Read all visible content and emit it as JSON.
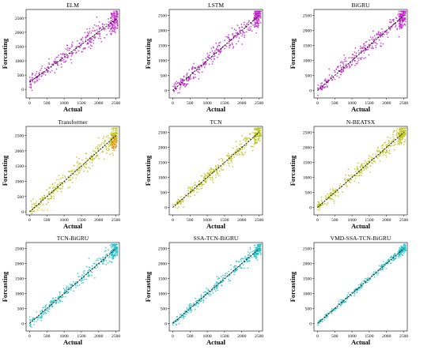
{
  "colors": {
    "magenta": "#c21ec9",
    "olive": "#b8c20e",
    "cyan": "#1ec3c8",
    "trend": "#000000",
    "orange_highlight": "#f08a1a"
  },
  "chart_data": [
    {
      "type": "scatter",
      "title": "ELM",
      "xlabel": "Actual",
      "ylabel": "Forcasting",
      "xlim": [
        -100,
        2600
      ],
      "ylim": [
        -300,
        2800
      ],
      "xticks": [
        0,
        500,
        1000,
        1500,
        2000,
        2500
      ],
      "yticks": [
        0,
        500,
        1000,
        1500,
        2000,
        2500
      ],
      "xtick_labels": [
        "0",
        "500",
        "1000",
        "1500",
        "2000",
        "2500"
      ],
      "ytick_labels": [
        "0",
        "500",
        "1000",
        "1500",
        "2000",
        "2500"
      ],
      "color": "#c21ec9",
      "spread": 210,
      "trend_line": [
        [
          0,
          250
        ],
        [
          2500,
          2450
        ]
      ],
      "grid": false,
      "legend": "none"
    },
    {
      "type": "scatter",
      "title": "LSTM",
      "xlabel": "Actual",
      "ylabel": "Forcasting",
      "xlim": [
        -100,
        2600
      ],
      "ylim": [
        -250,
        2700
      ],
      "xticks": [
        0,
        500,
        1000,
        1500,
        2000,
        2500
      ],
      "yticks": [
        0,
        500,
        1000,
        1500,
        2000,
        2500
      ],
      "xtick_labels": [
        "0",
        "500",
        "1000",
        "1500",
        "2000",
        "2500"
      ],
      "ytick_labels": [
        "0",
        "500",
        "1000",
        "1500",
        "2000",
        "2500"
      ],
      "color": "#c21ec9",
      "spread": 180,
      "trend_line": [
        [
          0,
          0
        ],
        [
          2500,
          2500
        ]
      ],
      "grid": false,
      "legend": "none"
    },
    {
      "type": "scatter",
      "title": "BiGRU",
      "xlabel": "Actual",
      "ylabel": "Forcasting",
      "xlim": [
        -100,
        2600
      ],
      "ylim": [
        -250,
        2700
      ],
      "xticks": [
        0,
        500,
        1000,
        1500,
        2000,
        2500
      ],
      "yticks": [
        0,
        500,
        1000,
        1500,
        2000,
        2500
      ],
      "xtick_labels": [
        "0",
        "500",
        "1000",
        "1500",
        "2000",
        "2500"
      ],
      "ytick_labels": [
        "0",
        "500",
        "1000",
        "1500",
        "2000",
        "2500"
      ],
      "color": "#c21ec9",
      "spread": 175,
      "trend_line": [
        [
          0,
          0
        ],
        [
          2500,
          2500
        ]
      ],
      "grid": false,
      "legend": "none"
    },
    {
      "type": "scatter",
      "title": "Transformer",
      "xlabel": "Actual",
      "ylabel": "Forcasting",
      "xlim": [
        -100,
        2600
      ],
      "ylim": [
        -100,
        2800
      ],
      "xticks": [
        0,
        500,
        1000,
        1500,
        2000,
        2500
      ],
      "yticks": [
        0,
        500,
        1000,
        1500,
        2000,
        2500
      ],
      "xtick_labels": [
        "0",
        "500",
        "1000",
        "1500",
        "2000",
        "2500"
      ],
      "ytick_labels": [
        "0",
        "500",
        "1000",
        "1500",
        "2000",
        "2500"
      ],
      "color": "#b8c20e",
      "spread": 190,
      "trend_line": [
        [
          0,
          0
        ],
        [
          2500,
          2500
        ]
      ],
      "grid": false,
      "legend": "none"
    },
    {
      "type": "scatter",
      "title": "TCN",
      "xlabel": "Actual",
      "ylabel": "Forcasting",
      "xlim": [
        -100,
        2600
      ],
      "ylim": [
        -250,
        2700
      ],
      "xticks": [
        0,
        500,
        1000,
        1500,
        2000,
        2500
      ],
      "yticks": [
        0,
        500,
        1000,
        1500,
        2000,
        2500
      ],
      "xtick_labels": [
        "0",
        "500",
        "1000",
        "1500",
        "2000",
        "2500"
      ],
      "ytick_labels": [
        "0",
        "500",
        "1000",
        "1500",
        "2000",
        "2500"
      ],
      "color": "#b8c20e",
      "spread": 165,
      "trend_line": [
        [
          0,
          0
        ],
        [
          2500,
          2500
        ]
      ],
      "grid": false,
      "legend": "none"
    },
    {
      "type": "scatter",
      "title": "N-BEATSX",
      "xlabel": "Actual",
      "ylabel": "Forcasting",
      "xlim": [
        -100,
        2600
      ],
      "ylim": [
        -250,
        2700
      ],
      "xticks": [
        0,
        500,
        1000,
        1500,
        2000,
        2500
      ],
      "yticks": [
        0,
        500,
        1000,
        1500,
        2000,
        2500
      ],
      "xtick_labels": [
        "0",
        "500",
        "1000",
        "1500",
        "2000",
        "2500"
      ],
      "ytick_labels": [
        "0",
        "500",
        "1000",
        "1500",
        "2000",
        "2500"
      ],
      "color": "#b8c20e",
      "spread": 160,
      "trend_line": [
        [
          0,
          0
        ],
        [
          2500,
          2500
        ]
      ],
      "grid": false,
      "legend": "none"
    },
    {
      "type": "scatter",
      "title": "TCN-BiGRU",
      "xlabel": "Actual",
      "ylabel": "Forcasting",
      "xlim": [
        -100,
        2600
      ],
      "ylim": [
        -250,
        2700
      ],
      "xticks": [
        0,
        500,
        1000,
        1500,
        2000,
        2500
      ],
      "yticks": [
        0,
        500,
        1000,
        1500,
        2000,
        2500
      ],
      "xtick_labels": [
        "0",
        "500",
        "1000",
        "1500",
        "2000",
        "2500"
      ],
      "ytick_labels": [
        "0",
        "500",
        "1000",
        "1500",
        "2000",
        "2500"
      ],
      "color": "#1ec3c8",
      "spread": 140,
      "trend_line": [
        [
          0,
          0
        ],
        [
          2500,
          2500
        ]
      ],
      "grid": false,
      "legend": "none"
    },
    {
      "type": "scatter",
      "title": "SSA-TCN-BiGRU",
      "xlabel": "Actual",
      "ylabel": "Forcasting",
      "xlim": [
        -100,
        2600
      ],
      "ylim": [
        -250,
        2700
      ],
      "xticks": [
        0,
        500,
        1000,
        1500,
        2000,
        2500
      ],
      "yticks": [
        0,
        500,
        1000,
        1500,
        2000,
        2500
      ],
      "xtick_labels": [
        "0",
        "500",
        "1000",
        "1500",
        "2000",
        "2500"
      ],
      "ytick_labels": [
        "0",
        "500",
        "1000",
        "1500",
        "2000",
        "2500"
      ],
      "color": "#1ec3c8",
      "spread": 120,
      "trend_line": [
        [
          0,
          0
        ],
        [
          2500,
          2500
        ]
      ],
      "grid": false,
      "legend": "none"
    },
    {
      "type": "scatter",
      "title": "VMD-SSA-TCN-BiGRU",
      "xlabel": "Actual",
      "ylabel": "Forcasting",
      "xlim": [
        -100,
        2600
      ],
      "ylim": [
        -250,
        2700
      ],
      "xticks": [
        0,
        500,
        1000,
        1500,
        2000,
        2500
      ],
      "yticks": [
        0,
        500,
        1000,
        1500,
        2000,
        2500
      ],
      "xtick_labels": [
        "0",
        "500",
        "1000",
        "1500",
        "2000",
        "2500"
      ],
      "ytick_labels": [
        "0",
        "500",
        "1000",
        "1500",
        "2000",
        "2500"
      ],
      "color": "#1ec3c8",
      "spread": 70,
      "trend_line": [
        [
          0,
          0
        ],
        [
          2500,
          2500
        ]
      ],
      "grid": false,
      "legend": "none"
    }
  ]
}
